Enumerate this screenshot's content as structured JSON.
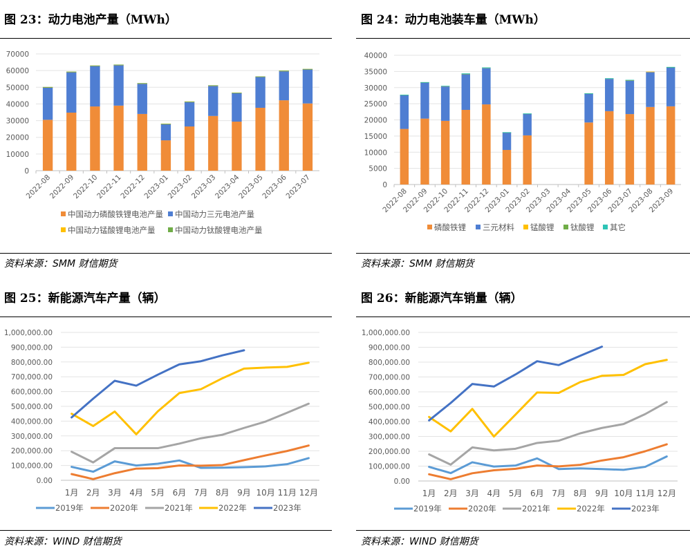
{
  "figures": [
    {
      "title": "图 23：动力电池产量（MWh）",
      "source": "资料来源：SMM  财信期货"
    },
    {
      "title": "图 24：动力电池装车量（MWh）",
      "source": "资料来源：SMM  财信期货"
    },
    {
      "title": "图 25：新能源汽车产量（辆）",
      "source": "资料来源：WIND  财信期货"
    },
    {
      "title": "图 26：新能源汽车销量（辆）",
      "source": "资料来源：WIND  财信期货"
    }
  ],
  "chart_data": [
    {
      "type": "bar",
      "stacked": true,
      "title": "动力电池产量（MWh）",
      "categories": [
        "2022-08",
        "2022-09",
        "2022-10",
        "2022-11",
        "2022-12",
        "2023-01",
        "2023-02",
        "2023-03",
        "2023-04",
        "2023-05",
        "2023-06",
        "2023-07"
      ],
      "ylim": [
        0,
        70000
      ],
      "yticks": [
        "0",
        "10000",
        "20000",
        "30000",
        "40000",
        "50000",
        "60000",
        "70000"
      ],
      "grid": true,
      "legend": "bottom",
      "series": [
        {
          "name": "中国动力磷酸铁锂电池产量",
          "color": "#F08C38",
          "values": [
            30500,
            34800,
            38500,
            39000,
            34000,
            18200,
            26500,
            32800,
            29400,
            37700,
            42200,
            40300
          ]
        },
        {
          "name": "中国动力三元电池产量",
          "color": "#4F7ED2",
          "values": [
            19500,
            24400,
            24300,
            24400,
            18300,
            9800,
            14800,
            18200,
            17200,
            18600,
            17600,
            20500
          ]
        },
        {
          "name": "中国动力锰酸锂电池产量",
          "color": "#FFC000",
          "values": [
            100,
            100,
            200,
            100,
            100,
            100,
            100,
            100,
            150,
            150,
            100,
            150
          ]
        },
        {
          "name": "中国动力钛酸锂电池产量",
          "color": "#70AD47",
          "values": [
            100,
            100,
            50,
            100,
            100,
            100,
            100,
            100,
            50,
            50,
            100,
            50
          ]
        }
      ]
    },
    {
      "type": "bar",
      "stacked": true,
      "title": "动力电池装车量（MWh）",
      "categories": [
        "2022-08",
        "2022-09",
        "2022-10",
        "2022-11",
        "2022-12",
        "2023-01",
        "2023-02",
        "2023-03",
        "2023-04",
        "2023-05",
        "2023-06",
        "2023-07",
        "2023-08",
        "2023-09"
      ],
      "ylim": [
        0,
        40000
      ],
      "yticks": [
        "0",
        "5000",
        "10000",
        "15000",
        "20000",
        "25000",
        "30000",
        "35000",
        "40000"
      ],
      "grid": true,
      "legend": "bottom",
      "series": [
        {
          "name": "磷酸铁锂",
          "color": "#F08C38",
          "values": [
            17200,
            20400,
            19700,
            23100,
            24800,
            10700,
            15200,
            null,
            null,
            19200,
            22700,
            21800,
            24000,
            24200
          ]
        },
        {
          "name": "三元材料",
          "color": "#4F7ED2",
          "values": [
            10500,
            11200,
            10700,
            11000,
            11200,
            5400,
            6700,
            null,
            null,
            8900,
            10000,
            10400,
            10800,
            12100
          ]
        },
        {
          "name": "锰酸锂",
          "color": "#FFC000",
          "values": [
            0,
            0,
            100,
            0,
            0,
            0,
            0,
            null,
            null,
            0,
            0,
            100,
            150,
            0
          ]
        },
        {
          "name": "钛酸锂",
          "color": "#70AD47",
          "values": [
            50,
            50,
            0,
            200,
            200,
            50,
            50,
            null,
            null,
            100,
            150,
            50,
            0,
            50
          ]
        },
        {
          "name": "其它",
          "color": "#2EC4B6",
          "values": [
            50,
            50,
            50,
            100,
            50,
            50,
            50,
            null,
            null,
            50,
            50,
            50,
            0,
            50
          ]
        }
      ]
    },
    {
      "type": "line",
      "title": "新能源汽车产量（辆）",
      "categories": [
        "1月",
        "2月",
        "3月",
        "4月",
        "5月",
        "6月",
        "7月",
        "8月",
        "9月",
        "10月",
        "11月",
        "12月"
      ],
      "ylim": [
        0,
        1000000
      ],
      "yticks": [
        "0.00",
        "100,000.00",
        "200,000.00",
        "300,000.00",
        "400,000.00",
        "500,000.00",
        "600,000.00",
        "700,000.00",
        "800,000.00",
        "900,000.00",
        "1,000,000.00"
      ],
      "grid": true,
      "legend": "bottom",
      "series": [
        {
          "name": "2019年",
          "color": "#5B9BD5",
          "values": [
            91000,
            58000,
            128000,
            100000,
            112000,
            134000,
            84000,
            85000,
            89000,
            94000,
            109000,
            150000
          ]
        },
        {
          "name": "2020年",
          "color": "#ED7D31",
          "values": [
            42000,
            8000,
            48000,
            79000,
            82000,
            100000,
            99000,
            103000,
            136000,
            168000,
            198000,
            235000
          ]
        },
        {
          "name": "2021年",
          "color": "#A5A5A5",
          "values": [
            193000,
            121000,
            217000,
            217000,
            217000,
            248000,
            284000,
            308000,
            354000,
            397000,
            457000,
            518000
          ]
        },
        {
          "name": "2022年",
          "color": "#FFC000",
          "values": [
            450000,
            367000,
            465000,
            311000,
            466000,
            590000,
            616000,
            690000,
            755000,
            762000,
            767000,
            795000
          ]
        },
        {
          "name": "2023年",
          "color": "#4472C4",
          "values": [
            425000,
            552000,
            673000,
            640000,
            714000,
            784000,
            805000,
            845000,
            879000,
            null,
            null,
            null
          ]
        }
      ]
    },
    {
      "type": "line",
      "title": "新能源汽车销量（辆）",
      "categories": [
        "1月",
        "2月",
        "3月",
        "4月",
        "5月",
        "6月",
        "7月",
        "8月",
        "9月",
        "10月",
        "11月",
        "12月"
      ],
      "ylim": [
        0,
        1000000
      ],
      "yticks": [
        "0.00",
        "100,000.00",
        "200,000.00",
        "300,000.00",
        "400,000.00",
        "500,000.00",
        "600,000.00",
        "700,000.00",
        "800,000.00",
        "900,000.00",
        "1,000,000.00"
      ],
      "grid": true,
      "legend": "bottom",
      "series": [
        {
          "name": "2019年",
          "color": "#5B9BD5",
          "values": [
            95000,
            53000,
            126000,
            97000,
            104000,
            152000,
            80000,
            85000,
            80000,
            75000,
            95000,
            165000
          ]
        },
        {
          "name": "2020年",
          "color": "#ED7D31",
          "values": [
            45000,
            12000,
            52000,
            72000,
            82000,
            104000,
            98000,
            109000,
            138000,
            160000,
            200000,
            247000
          ]
        },
        {
          "name": "2021年",
          "color": "#A5A5A5",
          "values": [
            179000,
            110000,
            226000,
            206000,
            217000,
            256000,
            271000,
            321000,
            357000,
            383000,
            450000,
            531000
          ]
        },
        {
          "name": "2022年",
          "color": "#FFC000",
          "values": [
            431000,
            334000,
            485000,
            299000,
            447000,
            596000,
            593000,
            666000,
            708000,
            714000,
            786000,
            815000
          ]
        },
        {
          "name": "2023年",
          "color": "#4472C4",
          "values": [
            408000,
            525000,
            653000,
            636000,
            717000,
            806000,
            780000,
            843000,
            904000,
            null,
            null,
            null
          ]
        }
      ]
    }
  ]
}
